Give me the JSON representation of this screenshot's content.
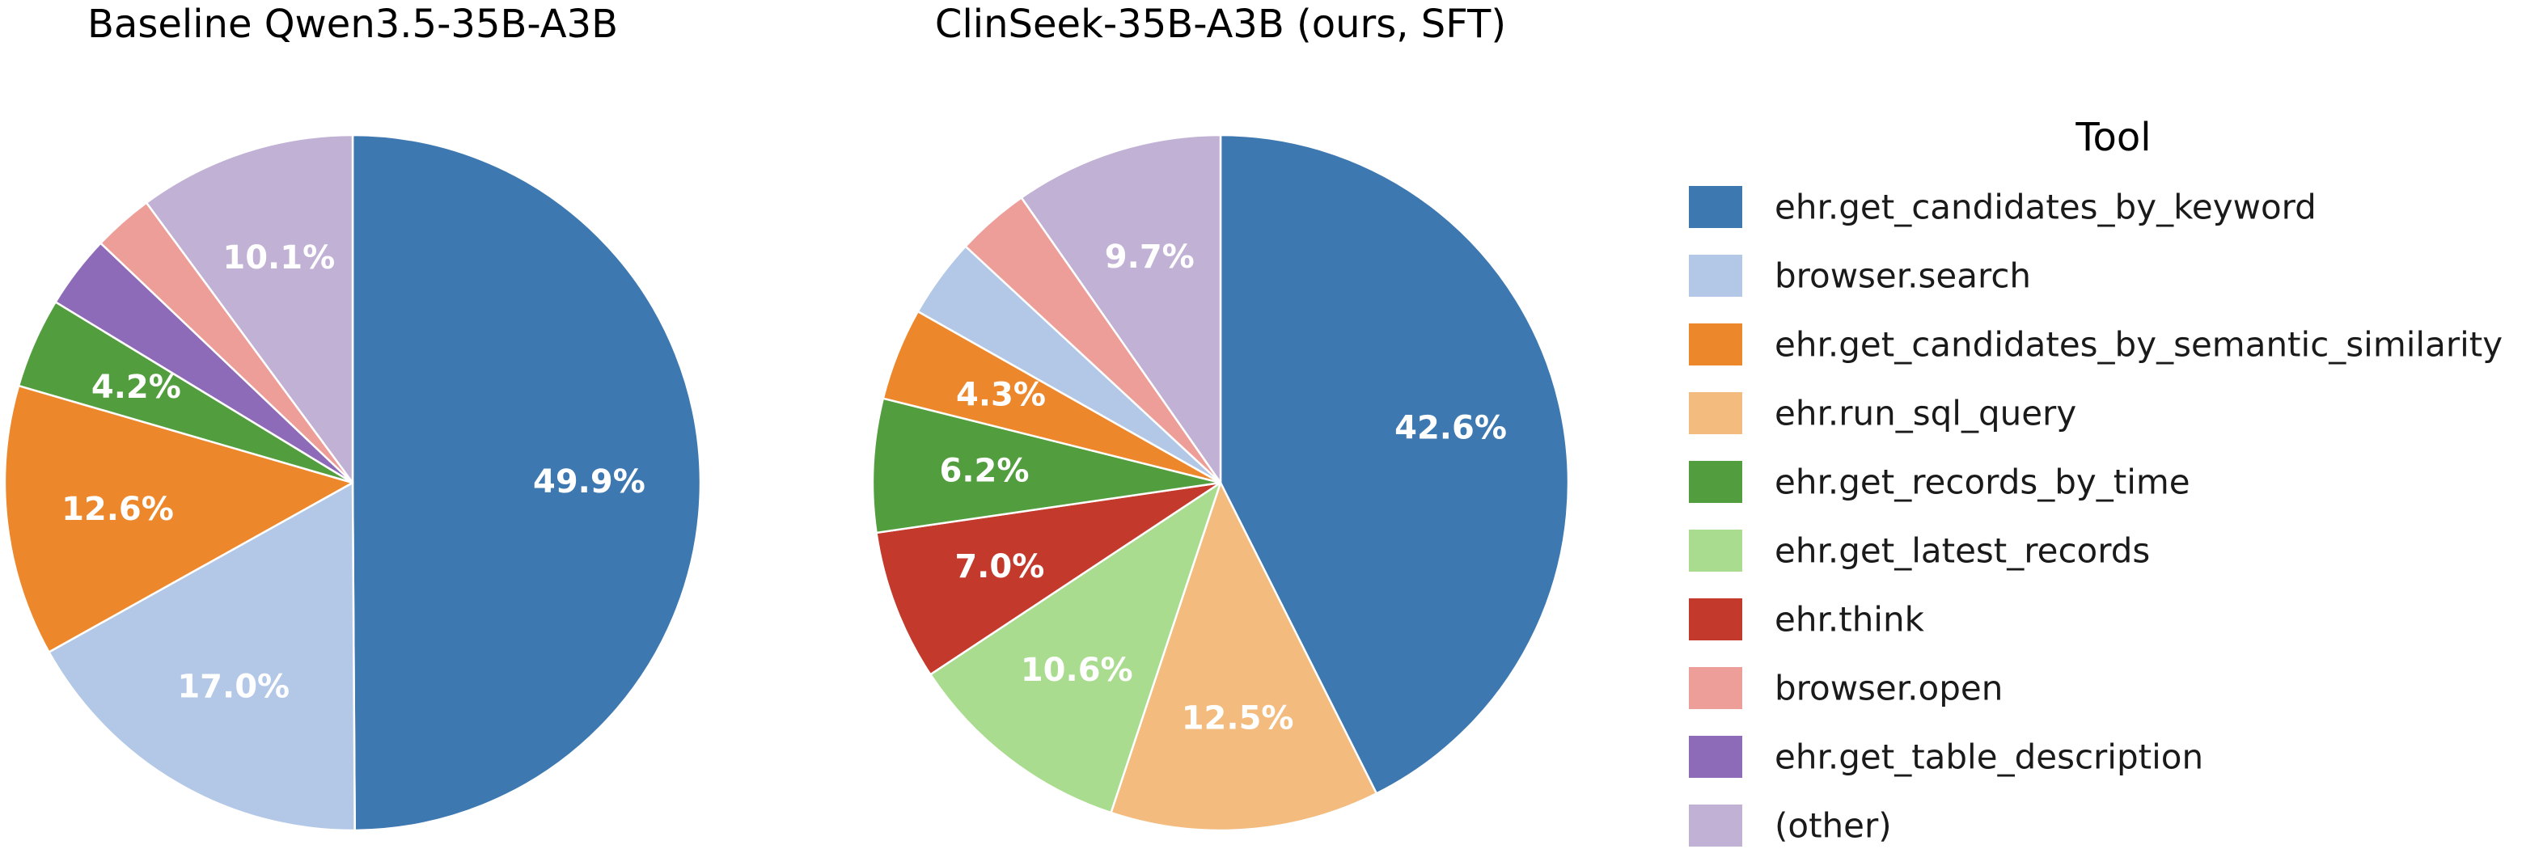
{
  "legend": {
    "title": "Tool",
    "items": [
      {
        "label": "ehr.get_candidates_by_keyword",
        "color": "#3d78b1"
      },
      {
        "label": "browser.search",
        "color": "#b3c8e7"
      },
      {
        "label": "ehr.get_candidates_by_semantic_similarity",
        "color": "#ed872c"
      },
      {
        "label": "ehr.run_sql_query",
        "color": "#f3bb7e"
      },
      {
        "label": "ehr.get_records_by_time",
        "color": "#529e3f"
      },
      {
        "label": "ehr.get_latest_records",
        "color": "#a9dc8f"
      },
      {
        "label": "ehr.think",
        "color": "#c3392b"
      },
      {
        "label": "browser.open",
        "color": "#ee9e98"
      },
      {
        "label": "ehr.get_table_description",
        "color": "#8e6bb8"
      },
      {
        "label": "(other)",
        "color": "#c0b1d5"
      }
    ]
  },
  "chart_data": [
    {
      "type": "pie",
      "title": "Baseline Qwen3.5-35B-A3B",
      "start": "top",
      "direction": "clockwise",
      "slices": [
        {
          "tool": "ehr.get_candidates_by_keyword",
          "value": 49.9,
          "label": "49.9%"
        },
        {
          "tool": "browser.search",
          "value": 17.0,
          "label": "17.0%"
        },
        {
          "tool": "ehr.get_candidates_by_semantic_similarity",
          "value": 12.6,
          "label": "12.6%"
        },
        {
          "tool": "ehr.get_records_by_time",
          "value": 4.2,
          "label": "4.2%"
        },
        {
          "tool": "ehr.get_table_description",
          "value": 3.4,
          "label": ""
        },
        {
          "tool": "browser.open",
          "value": 2.8,
          "label": ""
        },
        {
          "tool": "(other)",
          "value": 10.1,
          "label": "10.1%"
        }
      ]
    },
    {
      "type": "pie",
      "title": "ClinSeek-35B-A3B (ours, SFT)",
      "start": "top",
      "direction": "clockwise",
      "slices": [
        {
          "tool": "ehr.get_candidates_by_keyword",
          "value": 42.6,
          "label": "42.6%"
        },
        {
          "tool": "ehr.run_sql_query",
          "value": 12.5,
          "label": "12.5%"
        },
        {
          "tool": "ehr.get_latest_records",
          "value": 10.6,
          "label": "10.6%"
        },
        {
          "tool": "ehr.think",
          "value": 7.0,
          "label": "7.0%"
        },
        {
          "tool": "ehr.get_records_by_time",
          "value": 6.2,
          "label": "6.2%"
        },
        {
          "tool": "ehr.get_candidates_by_semantic_similarity",
          "value": 4.3,
          "label": "4.3%"
        },
        {
          "tool": "browser.search",
          "value": 3.7,
          "label": ""
        },
        {
          "tool": "browser.open",
          "value": 3.4,
          "label": ""
        },
        {
          "tool": "(other)",
          "value": 9.7,
          "label": "9.7%"
        }
      ]
    }
  ]
}
